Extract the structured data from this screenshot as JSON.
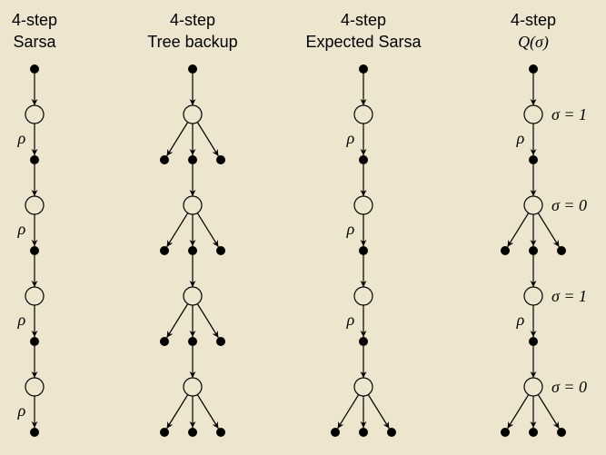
{
  "columns": [
    {
      "title_line1": "4-step",
      "title_line2": "Sarsa",
      "title_italic": false,
      "levels": [
        "single",
        "single",
        "single",
        "single"
      ],
      "rho": [
        true,
        true,
        true,
        true
      ],
      "sigma": [
        null,
        null,
        null,
        null
      ]
    },
    {
      "title_line1": "4-step",
      "title_line2": "Tree backup",
      "title_italic": false,
      "levels": [
        "branch",
        "branch",
        "branch",
        "branch"
      ],
      "rho": [
        false,
        false,
        false,
        false
      ],
      "sigma": [
        null,
        null,
        null,
        null
      ]
    },
    {
      "title_line1": "4-step",
      "title_line2": "Expected Sarsa",
      "title_italic": false,
      "levels": [
        "single",
        "single",
        "single",
        "branch"
      ],
      "rho": [
        true,
        true,
        true,
        false
      ],
      "sigma": [
        null,
        null,
        null,
        null
      ]
    },
    {
      "title_line1": "4-step",
      "title_line2": "Q(σ)",
      "title_italic": true,
      "levels": [
        "single",
        "branch",
        "single",
        "branch"
      ],
      "rho": [
        true,
        false,
        true,
        false
      ],
      "sigma": [
        "σ = 1",
        "σ = 0",
        "σ = 1",
        "σ = 0"
      ]
    }
  ],
  "rho_symbol": "ρ",
  "colors": {
    "background": "#eee5cf",
    "state_fill": "#000000",
    "action_fill": "#eee5cf",
    "stroke": "#000000"
  }
}
